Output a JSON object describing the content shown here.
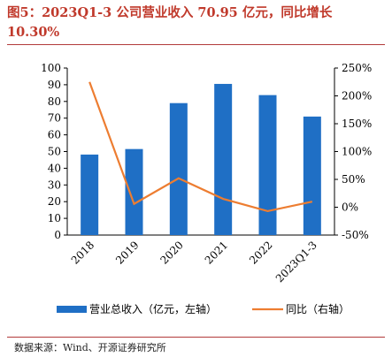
{
  "figure": {
    "title": "图5：2023Q1-3 公司营业收入 70.95 亿元，同比增长 10.30%",
    "source": "数据来源：Wind、开源证券研究所"
  },
  "chart_data": {
    "type": "bar",
    "categories": [
      "2018",
      "2019",
      "2020",
      "2021",
      "2022",
      "2023Q1-3"
    ],
    "series": [
      {
        "name": "营业总收入（亿元，左轴）",
        "type": "bar",
        "axis": "left",
        "color": "#1f6fc5",
        "values": [
          48.2,
          51.5,
          79.0,
          90.5,
          83.8,
          70.95
        ]
      },
      {
        "name": "同比（右轴）",
        "type": "line",
        "axis": "right",
        "color": "#ed7d31",
        "values": [
          225,
          6,
          52,
          15,
          -7,
          10
        ]
      }
    ],
    "y_left": {
      "ylim": [
        0,
        100
      ],
      "ticks": [
        "0",
        "10",
        "20",
        "30",
        "40",
        "50",
        "60",
        "70",
        "80",
        "90",
        "100"
      ]
    },
    "y_right": {
      "ylim": [
        -50,
        250
      ],
      "ticks": [
        "-50%",
        "0%",
        "50%",
        "100%",
        "150%",
        "200%",
        "250%"
      ]
    },
    "legend": "bottom",
    "grid": false
  }
}
